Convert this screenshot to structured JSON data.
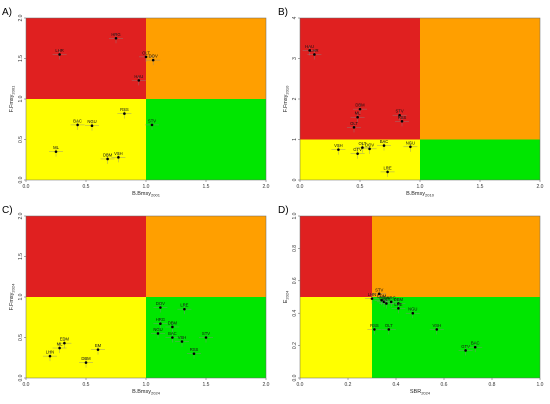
{
  "colors": {
    "red": "#e02020",
    "orange": "#ff9f00",
    "yellow": "#ffff00",
    "green": "#00e600",
    "point": "#000000",
    "error_bar": "#888888"
  },
  "chart_data": [
    {
      "type": "scatter",
      "panel": "A)",
      "xlabel_main": "B.Bmsy",
      "xlabel_sub": "2001",
      "ylabel_main": "F.Fmsy",
      "ylabel_sub": "2001",
      "xlim": [
        0,
        2.0
      ],
      "ylim": [
        0,
        2.0
      ],
      "xticks": [
        "0.0",
        "0.5",
        "1.0",
        "1.5",
        "2.0"
      ],
      "yticks": [
        "0.0",
        "0.5",
        "1.0",
        "1.5",
        "2.0"
      ],
      "x_ref": 1.0,
      "y_ref": 1.0,
      "points": [
        {
          "label": "HRG",
          "x": 0.75,
          "y": 1.75
        },
        {
          "label": "LHR",
          "x": 0.28,
          "y": 1.55
        },
        {
          "label": "OLT",
          "x": 1.0,
          "y": 1.52
        },
        {
          "label": "DOV",
          "x": 1.06,
          "y": 1.48
        },
        {
          "label": "HAU",
          "x": 0.94,
          "y": 1.23
        },
        {
          "label": "RSS",
          "x": 0.82,
          "y": 0.82
        },
        {
          "label": "BAC",
          "x": 0.43,
          "y": 0.68
        },
        {
          "label": "NGU",
          "x": 0.55,
          "y": 0.67
        },
        {
          "label": "STV",
          "x": 1.05,
          "y": 0.68
        },
        {
          "label": "ML",
          "x": 0.25,
          "y": 0.35
        },
        {
          "label": "VSH",
          "x": 0.77,
          "y": 0.28
        },
        {
          "label": "DBM",
          "x": 0.68,
          "y": 0.26
        }
      ]
    },
    {
      "type": "scatter",
      "panel": "B)",
      "xlabel_main": "B.Bmsy",
      "xlabel_sub": "2010",
      "ylabel_main": "F.Fmsy",
      "ylabel_sub": "2010",
      "xlim": [
        0,
        2.0
      ],
      "ylim": [
        0,
        4
      ],
      "xticks": [
        "0.0",
        "0.5",
        "1.0",
        "1.5",
        "2.0"
      ],
      "yticks": [
        "0",
        "1",
        "2",
        "3",
        "4"
      ],
      "x_ref": 1.0,
      "y_ref": 1.0,
      "points": [
        {
          "label": "HAU",
          "x": 0.08,
          "y": 3.2
        },
        {
          "label": "LHR",
          "x": 0.12,
          "y": 3.1
        },
        {
          "label": "DBM",
          "x": 0.5,
          "y": 1.75
        },
        {
          "label": "ML",
          "x": 0.48,
          "y": 1.55
        },
        {
          "label": "OLT",
          "x": 0.45,
          "y": 1.3
        },
        {
          "label": "STV",
          "x": 0.83,
          "y": 1.6
        },
        {
          "label": "RSS",
          "x": 0.85,
          "y": 1.45
        },
        {
          "label": "VSH",
          "x": 0.32,
          "y": 0.75
        },
        {
          "label": "OLT",
          "x": 0.52,
          "y": 0.8
        },
        {
          "label": "DOV",
          "x": 0.58,
          "y": 0.77
        },
        {
          "label": "GTV",
          "x": 0.48,
          "y": 0.65
        },
        {
          "label": "BAC",
          "x": 0.7,
          "y": 0.85
        },
        {
          "label": "NGU",
          "x": 0.92,
          "y": 0.82
        },
        {
          "label": "LRE",
          "x": 0.73,
          "y": 0.2
        }
      ]
    },
    {
      "type": "scatter",
      "panel": "C)",
      "xlabel_main": "B.Bmsy",
      "xlabel_sub": "2024",
      "ylabel_main": "F.Fmsy",
      "ylabel_sub": "2024",
      "xlim": [
        0,
        2.0
      ],
      "ylim": [
        0,
        2.0
      ],
      "xticks": [
        "0.0",
        "0.5",
        "1.0",
        "1.5",
        "2.0"
      ],
      "yticks": [
        "0.0",
        "0.5",
        "1.0",
        "1.5",
        "2.0"
      ],
      "x_ref": 1.0,
      "y_ref": 1.0,
      "points": [
        {
          "label": "DOV",
          "x": 1.12,
          "y": 0.87
        },
        {
          "label": "LRE",
          "x": 1.32,
          "y": 0.85
        },
        {
          "label": "HRG",
          "x": 1.12,
          "y": 0.67
        },
        {
          "label": "DBM",
          "x": 1.22,
          "y": 0.63
        },
        {
          "label": "NGU",
          "x": 1.1,
          "y": 0.55
        },
        {
          "label": "BAC",
          "x": 1.22,
          "y": 0.5
        },
        {
          "label": "STV",
          "x": 1.5,
          "y": 0.5
        },
        {
          "label": "VSH",
          "x": 1.3,
          "y": 0.45
        },
        {
          "label": "RSS",
          "x": 1.4,
          "y": 0.3
        },
        {
          "label": "EDM",
          "x": 0.32,
          "y": 0.43
        },
        {
          "label": "ML",
          "x": 0.28,
          "y": 0.37
        },
        {
          "label": "EM",
          "x": 0.6,
          "y": 0.35
        },
        {
          "label": "LHN",
          "x": 0.2,
          "y": 0.27
        },
        {
          "label": "DBM",
          "x": 0.5,
          "y": 0.19
        }
      ]
    },
    {
      "type": "scatter",
      "panel": "D)",
      "xlabel_main": "SBR",
      "xlabel_sub": "2024",
      "ylabel_main": "E",
      "ylabel_sub": "2024",
      "xlim": [
        0,
        1.0
      ],
      "ylim": [
        0,
        1.0
      ],
      "xticks": [
        "0.0",
        "0.2",
        "0.4",
        "0.6",
        "0.8",
        "1.0"
      ],
      "yticks": [
        "0.0",
        "0.2",
        "0.4",
        "0.6",
        "0.8",
        "1.0"
      ],
      "x_ref": 0.3,
      "y_ref": 0.5,
      "points": [
        {
          "label": "STV",
          "x": 0.33,
          "y": 0.52
        },
        {
          "label": "LHN",
          "x": 0.3,
          "y": 0.49
        },
        {
          "label": "EDM",
          "x": 0.34,
          "y": 0.48
        },
        {
          "label": "DBM",
          "x": 0.35,
          "y": 0.47
        },
        {
          "label": "OLT",
          "x": 0.36,
          "y": 0.46
        },
        {
          "label": "HRG",
          "x": 0.38,
          "y": 0.47
        },
        {
          "label": "DBM",
          "x": 0.41,
          "y": 0.46
        },
        {
          "label": "LRE",
          "x": 0.41,
          "y": 0.43
        },
        {
          "label": "NGU",
          "x": 0.47,
          "y": 0.4
        },
        {
          "label": "RSS",
          "x": 0.31,
          "y": 0.3
        },
        {
          "label": "OLT",
          "x": 0.37,
          "y": 0.3
        },
        {
          "label": "VSH",
          "x": 0.57,
          "y": 0.3
        },
        {
          "label": "GTV",
          "x": 0.69,
          "y": 0.17
        },
        {
          "label": "BAC",
          "x": 0.73,
          "y": 0.19
        }
      ]
    }
  ]
}
